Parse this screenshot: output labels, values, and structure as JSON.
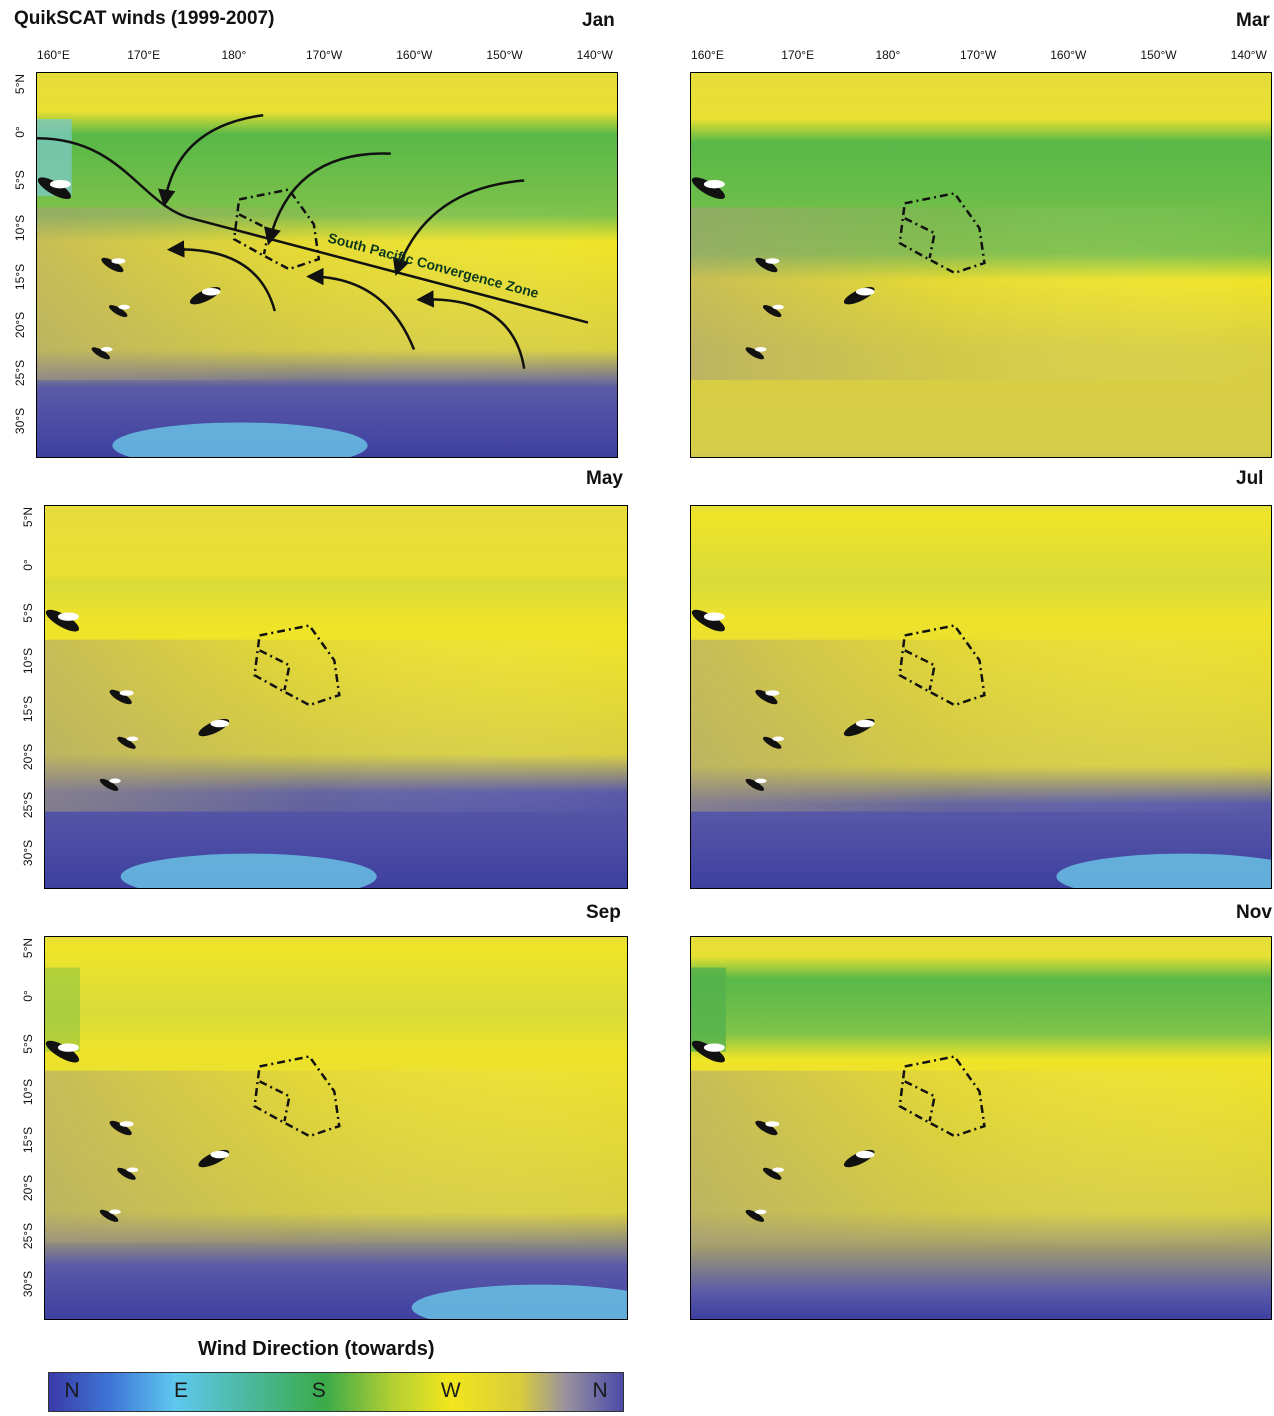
{
  "title": "QuikSCAT winds (1999-2007)",
  "lon_labels": [
    "160°E",
    "170°E",
    "180°",
    "170°W",
    "160°W",
    "150°W",
    "140°W"
  ],
  "lat_labels": [
    "5°N",
    "0°",
    "5°S",
    "10°S",
    "15°S",
    "20°S",
    "25°S",
    "30°S"
  ],
  "panels": [
    {
      "month": "Jan",
      "annotation": "South Pacific Convergence Zone"
    },
    {
      "month": "Mar"
    },
    {
      "month": "May"
    },
    {
      "month": "Jul"
    },
    {
      "month": "Sep"
    },
    {
      "month": "Nov"
    }
  ],
  "legend": {
    "title": "Wind Direction (towards)",
    "labels": [
      "N",
      "E",
      "S",
      "W",
      "N"
    ]
  },
  "colors": {
    "north_blue": "#3a3aa8",
    "east_cyan": "#5ec8ee",
    "south_green": "#3aaa4a",
    "west_yellow": "#f2e61e",
    "neutral_grey": "#9a92a0"
  }
}
